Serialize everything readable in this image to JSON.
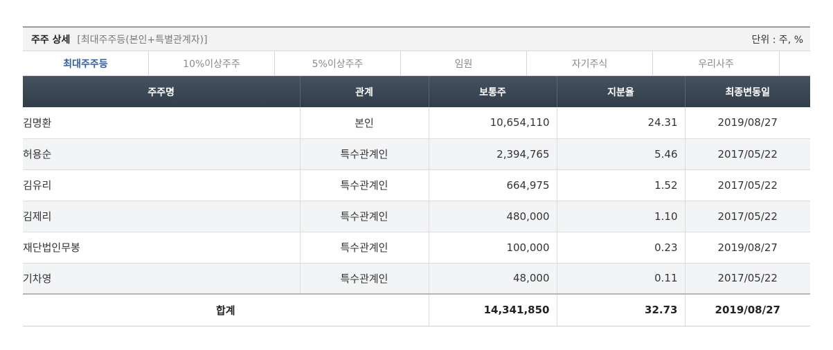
{
  "header": {
    "title": "주주 상세",
    "subtitle": "[최대주주등(본인+특별관계자)]",
    "unit": "단위 : 주, %"
  },
  "tabs": [
    {
      "label": "최대주주등",
      "active": true
    },
    {
      "label": "10%이상주주",
      "active": false
    },
    {
      "label": "5%이상주주",
      "active": false
    },
    {
      "label": "임원",
      "active": false
    },
    {
      "label": "자기주식",
      "active": false
    },
    {
      "label": "우리사주",
      "active": false
    }
  ],
  "table": {
    "columns": [
      "주주명",
      "관계",
      "보통주",
      "지분율",
      "최종변동일"
    ],
    "rows": [
      {
        "name": "김명환",
        "relation": "본인",
        "shares": "10,654,110",
        "ratio": "24.31",
        "date": "2019/08/27"
      },
      {
        "name": "허용순",
        "relation": "특수관계인",
        "shares": "2,394,765",
        "ratio": "5.46",
        "date": "2017/05/22"
      },
      {
        "name": "김유리",
        "relation": "특수관계인",
        "shares": "664,975",
        "ratio": "1.52",
        "date": "2017/05/22"
      },
      {
        "name": "김제리",
        "relation": "특수관계인",
        "shares": "480,000",
        "ratio": "1.10",
        "date": "2017/05/22"
      },
      {
        "name": "재단법인무봉",
        "relation": "특수관계인",
        "shares": "100,000",
        "ratio": "0.23",
        "date": "2019/08/27"
      },
      {
        "name": "기차영",
        "relation": "특수관계인",
        "shares": "48,000",
        "ratio": "0.11",
        "date": "2017/05/22"
      }
    ],
    "total": {
      "label": "합계",
      "shares": "14,341,850",
      "ratio": "32.73",
      "date": "2019/08/27"
    }
  },
  "colors": {
    "header_bg": "#3a4654",
    "active_tab": "#2f5fb3",
    "stripe": "#f3f4f6"
  }
}
